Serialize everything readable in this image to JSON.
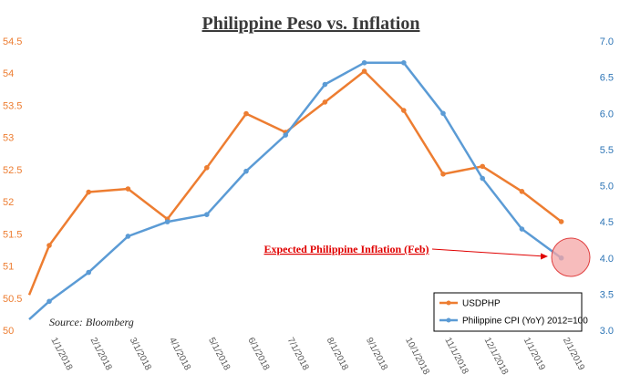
{
  "chart_data": {
    "type": "line",
    "title": "Philippine Peso vs. Inflation",
    "x": [
      "1/1/2018",
      "2/1/2018",
      "3/1/2018",
      "4/1/2018",
      "5/1/2018",
      "6/1/2018",
      "7/1/2018",
      "8/1/2018",
      "9/1/2018",
      "10/1/2018",
      "11/1/2018",
      "12/1/2018",
      "1/1/2019",
      "2/1/2019"
    ],
    "series": [
      {
        "name": "USDPHP",
        "axis": "left",
        "color": "#ed7d31",
        "leading_value": 50.55,
        "values": [
          51.32,
          52.15,
          52.2,
          51.73,
          52.53,
          53.37,
          53.08,
          53.55,
          54.03,
          53.42,
          52.43,
          52.55,
          52.16,
          51.69
        ]
      },
      {
        "name": "Philippine CPI (YoY) 2012=100",
        "axis": "right",
        "color": "#5b9bd5",
        "leading_value": 3.15,
        "values": [
          3.4,
          3.8,
          4.3,
          4.5,
          4.6,
          5.2,
          5.7,
          6.4,
          6.7,
          6.7,
          6.0,
          5.1,
          4.4,
          4.0
        ]
      }
    ],
    "y_left": {
      "min": 50,
      "max": 54.5,
      "ticks": [
        "50",
        "50.5",
        "51",
        "51.5",
        "52",
        "52.5",
        "53",
        "53.5",
        "54",
        "54.5"
      ]
    },
    "y_right": {
      "min": 3.0,
      "max": 7.0,
      "ticks": [
        "3.0",
        "3.5",
        "4.0",
        "4.5",
        "5.0",
        "5.5",
        "6.0",
        "6.5",
        "7.0"
      ]
    },
    "grid": false,
    "legend": "bottom-right",
    "annotation": {
      "text": "Expected Philippine Inflation (Feb)",
      "color": "#e00000"
    },
    "source": "Source: Bloomberg"
  }
}
